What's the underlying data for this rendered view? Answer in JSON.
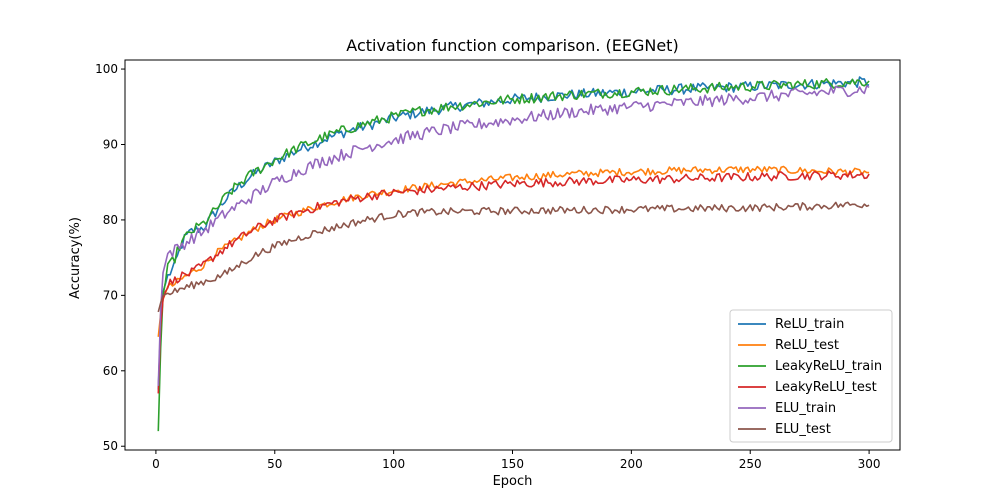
{
  "chart_data": {
    "type": "line",
    "title": "Activation function comparison. (EEGNet)",
    "xlabel": "Epoch",
    "ylabel": "Accuracy(%)",
    "xlim": [
      -13,
      313
    ],
    "ylim": [
      49.5,
      101.2
    ],
    "xticks": [
      0,
      50,
      100,
      150,
      200,
      250,
      300
    ],
    "yticks": [
      50,
      60,
      70,
      80,
      90,
      100
    ],
    "legend_position": "lower-right",
    "series": [
      {
        "name": "ReLU_train",
        "color": "#1f77b4",
        "points": [
          [
            1,
            57.5
          ],
          [
            2,
            66
          ],
          [
            3,
            70.5
          ],
          [
            5,
            72.5
          ],
          [
            8,
            74
          ],
          [
            10,
            76
          ],
          [
            12,
            77.5
          ],
          [
            15,
            78.5
          ],
          [
            20,
            79
          ],
          [
            25,
            81
          ],
          [
            30,
            83
          ],
          [
            35,
            84.5
          ],
          [
            40,
            85.8
          ],
          [
            45,
            86.8
          ],
          [
            50,
            87.7
          ],
          [
            60,
            89.3
          ],
          [
            70,
            90.6
          ],
          [
            80,
            91.7
          ],
          [
            90,
            92.6
          ],
          [
            100,
            93.5
          ],
          [
            110,
            94.2
          ],
          [
            125,
            95
          ],
          [
            150,
            96
          ],
          [
            175,
            96.6
          ],
          [
            200,
            97
          ],
          [
            225,
            97.4
          ],
          [
            250,
            97.7
          ],
          [
            275,
            98
          ],
          [
            300,
            98.3
          ]
        ],
        "noise": 0.7
      },
      {
        "name": "ReLU_test",
        "color": "#ff7f0e",
        "points": [
          [
            1,
            64.5
          ],
          [
            2,
            67.5
          ],
          [
            3,
            69.5
          ],
          [
            5,
            71
          ],
          [
            8,
            71.5
          ],
          [
            10,
            72
          ],
          [
            15,
            73
          ],
          [
            20,
            74
          ],
          [
            25,
            75.5
          ],
          [
            30,
            76.5
          ],
          [
            35,
            77.5
          ],
          [
            40,
            78.5
          ],
          [
            45,
            79.3
          ],
          [
            50,
            80
          ],
          [
            60,
            81
          ],
          [
            70,
            82
          ],
          [
            80,
            82.8
          ],
          [
            90,
            83.4
          ],
          [
            100,
            83.9
          ],
          [
            125,
            84.9
          ],
          [
            150,
            85.6
          ],
          [
            175,
            86.1
          ],
          [
            200,
            86.4
          ],
          [
            225,
            86.6
          ],
          [
            250,
            86.7
          ],
          [
            275,
            86.5
          ],
          [
            300,
            86.3
          ]
        ],
        "noise": 0.5
      },
      {
        "name": "LeakyReLU_train",
        "color": "#2ca02c",
        "points": [
          [
            1,
            52
          ],
          [
            2,
            63
          ],
          [
            3,
            70
          ],
          [
            5,
            73.5
          ],
          [
            8,
            75
          ],
          [
            10,
            76.5
          ],
          [
            12,
            77.5
          ],
          [
            15,
            78.5
          ],
          [
            20,
            79.5
          ],
          [
            25,
            81.3
          ],
          [
            30,
            83.3
          ],
          [
            35,
            84.8
          ],
          [
            40,
            86
          ],
          [
            45,
            87
          ],
          [
            50,
            88
          ],
          [
            60,
            89.6
          ],
          [
            70,
            90.9
          ],
          [
            80,
            92
          ],
          [
            90,
            92.9
          ],
          [
            100,
            93.7
          ],
          [
            110,
            94.4
          ],
          [
            125,
            95.1
          ],
          [
            150,
            96
          ],
          [
            175,
            96.6
          ],
          [
            200,
            97
          ],
          [
            225,
            97.4
          ],
          [
            250,
            97.7
          ],
          [
            275,
            98
          ],
          [
            300,
            98.4
          ]
        ],
        "noise": 0.7
      },
      {
        "name": "LeakyReLU_test",
        "color": "#d62728",
        "points": [
          [
            1,
            57
          ],
          [
            2,
            66
          ],
          [
            3,
            69.5
          ],
          [
            5,
            71.5
          ],
          [
            8,
            72
          ],
          [
            10,
            72.5
          ],
          [
            15,
            73
          ],
          [
            20,
            74
          ],
          [
            25,
            75.3
          ],
          [
            30,
            76.5
          ],
          [
            35,
            77.5
          ],
          [
            40,
            78.5
          ],
          [
            45,
            79.3
          ],
          [
            50,
            80
          ],
          [
            60,
            81
          ],
          [
            70,
            81.9
          ],
          [
            80,
            82.6
          ],
          [
            90,
            83.2
          ],
          [
            100,
            83.6
          ],
          [
            125,
            84.3
          ],
          [
            150,
            84.8
          ],
          [
            175,
            85.1
          ],
          [
            200,
            85.3
          ],
          [
            225,
            85.5
          ],
          [
            250,
            85.7
          ],
          [
            275,
            85.9
          ],
          [
            300,
            86
          ]
        ],
        "noise": 0.6
      },
      {
        "name": "ELU_train",
        "color": "#9467bd",
        "points": [
          [
            1,
            58
          ],
          [
            2,
            68
          ],
          [
            3,
            73
          ],
          [
            5,
            75.5
          ],
          [
            8,
            76
          ],
          [
            10,
            76.5
          ],
          [
            15,
            77.5
          ],
          [
            20,
            78.5
          ],
          [
            25,
            79.8
          ],
          [
            30,
            81
          ],
          [
            35,
            82
          ],
          [
            40,
            83
          ],
          [
            45,
            84
          ],
          [
            50,
            85
          ],
          [
            60,
            86.5
          ],
          [
            70,
            87.8
          ],
          [
            80,
            88.8
          ],
          [
            90,
            89.8
          ],
          [
            100,
            90.6
          ],
          [
            110,
            91.3
          ],
          [
            125,
            92.2
          ],
          [
            150,
            93.3
          ],
          [
            175,
            94.3
          ],
          [
            200,
            95
          ],
          [
            225,
            95.6
          ],
          [
            250,
            96.2
          ],
          [
            275,
            96.8
          ],
          [
            300,
            97.4
          ]
        ],
        "noise": 0.8
      },
      {
        "name": "ELU_test",
        "color": "#8c564b",
        "points": [
          [
            1,
            67.8
          ],
          [
            2,
            69
          ],
          [
            3,
            70
          ],
          [
            5,
            70.3
          ],
          [
            8,
            70.5
          ],
          [
            10,
            70.8
          ],
          [
            15,
            71.3
          ],
          [
            20,
            71.8
          ],
          [
            25,
            72.3
          ],
          [
            30,
            73
          ],
          [
            35,
            74
          ],
          [
            40,
            75
          ],
          [
            45,
            75.8
          ],
          [
            50,
            76.5
          ],
          [
            60,
            77.6
          ],
          [
            70,
            78.6
          ],
          [
            80,
            79.4
          ],
          [
            90,
            80.1
          ],
          [
            100,
            80.7
          ],
          [
            110,
            81
          ],
          [
            125,
            81.1
          ],
          [
            150,
            81.2
          ],
          [
            175,
            81.3
          ],
          [
            200,
            81.4
          ],
          [
            225,
            81.5
          ],
          [
            250,
            81.6
          ],
          [
            275,
            81.8
          ],
          [
            300,
            82.1
          ]
        ],
        "noise": 0.5
      }
    ]
  }
}
